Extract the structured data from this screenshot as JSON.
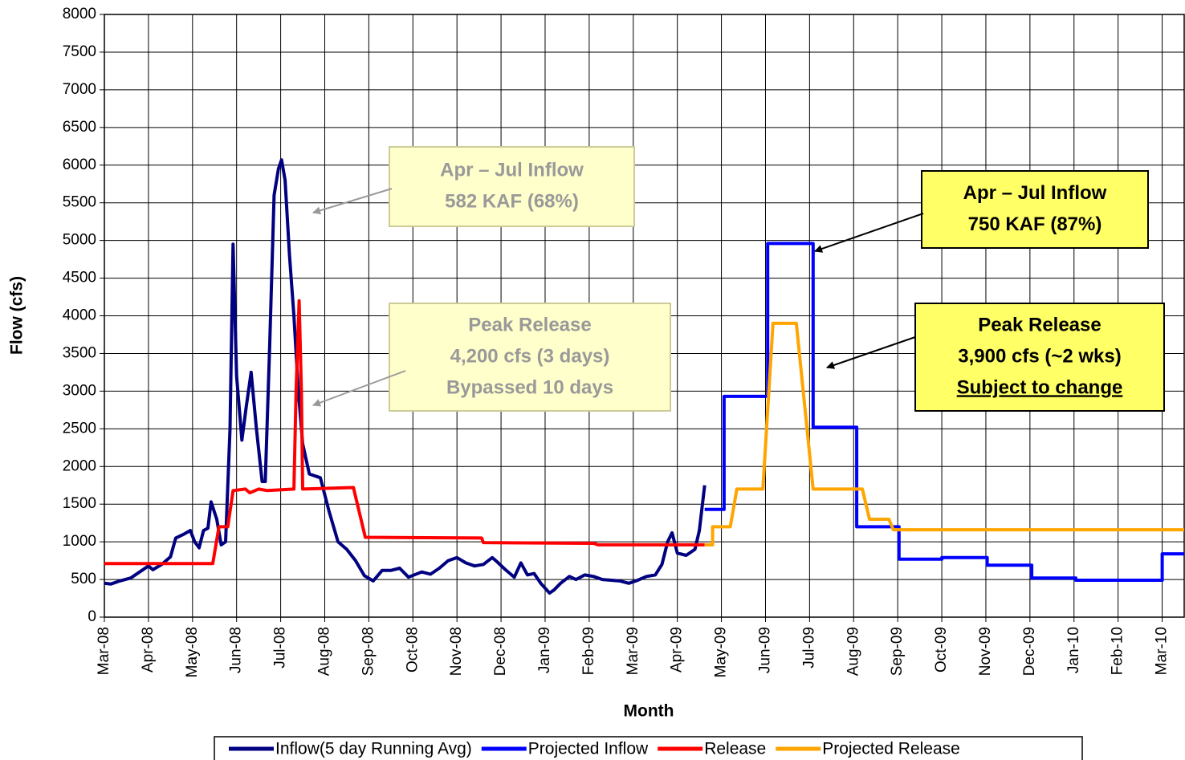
{
  "chart_data": {
    "type": "line",
    "x_label": "Month",
    "y_label": "Flow (cfs)",
    "xlim": [
      0,
      24.5
    ],
    "ylim": [
      0,
      8000
    ],
    "xticks": [
      {
        "value": 0,
        "label": "Mar-08"
      },
      {
        "value": 1,
        "label": "Apr-08"
      },
      {
        "value": 2,
        "label": "May-08"
      },
      {
        "value": 3,
        "label": "Jun-08"
      },
      {
        "value": 4,
        "label": "Jul-08"
      },
      {
        "value": 5,
        "label": "Aug-08"
      },
      {
        "value": 6,
        "label": "Sep-08"
      },
      {
        "value": 7,
        "label": "Oct-08"
      },
      {
        "value": 8,
        "label": "Nov-08"
      },
      {
        "value": 9,
        "label": "Dec-08"
      },
      {
        "value": 10,
        "label": "Jan-09"
      },
      {
        "value": 11,
        "label": "Feb-09"
      },
      {
        "value": 12,
        "label": "Mar-09"
      },
      {
        "value": 13,
        "label": "Apr-09"
      },
      {
        "value": 14,
        "label": "May-09"
      },
      {
        "value": 15,
        "label": "Jun-09"
      },
      {
        "value": 16,
        "label": "Jul-09"
      },
      {
        "value": 17,
        "label": "Aug-09"
      },
      {
        "value": 18,
        "label": "Sep-09"
      },
      {
        "value": 19,
        "label": "Oct-09"
      },
      {
        "value": 20,
        "label": "Nov-09"
      },
      {
        "value": 21,
        "label": "Dec-09"
      },
      {
        "value": 22,
        "label": "Jan-10"
      },
      {
        "value": 23,
        "label": "Feb-10"
      },
      {
        "value": 24,
        "label": "Mar-10"
      }
    ],
    "yticks": [
      0,
      500,
      1000,
      1500,
      2000,
      2500,
      3000,
      3500,
      4000,
      4500,
      5000,
      5500,
      6000,
      6500,
      7000,
      7500,
      8000
    ],
    "grid": true,
    "legend": "bottom",
    "series": [
      {
        "name": "Inflow(5 day Running Avg)",
        "color": "#000080",
        "x": [
          0,
          0.15,
          0.35,
          0.6,
          0.85,
          1.0,
          1.1,
          1.3,
          1.5,
          1.62,
          1.8,
          1.95,
          2.05,
          2.15,
          2.25,
          2.35,
          2.42,
          2.55,
          2.65,
          2.75,
          2.85,
          2.92,
          3.0,
          3.12,
          3.22,
          3.33,
          3.45,
          3.58,
          3.65,
          3.75,
          3.85,
          3.95,
          4.02,
          4.1,
          4.2,
          4.3,
          4.4,
          4.5,
          4.65,
          4.9,
          5.1,
          5.3,
          5.5,
          5.7,
          5.9,
          6.1,
          6.3,
          6.5,
          6.7,
          6.9,
          7.2,
          7.4,
          7.6,
          7.8,
          8.0,
          8.2,
          8.4,
          8.6,
          8.8,
          8.9,
          9.1,
          9.3,
          9.45,
          9.6,
          9.75,
          9.9,
          10.1,
          10.2,
          10.35,
          10.55,
          10.7,
          10.9,
          11.1,
          11.3,
          11.5,
          11.7,
          11.9,
          12.1,
          12.3,
          12.5,
          12.65,
          12.78,
          12.88,
          13.0,
          13.2,
          13.4,
          13.5,
          13.62
        ],
        "values": [
          450,
          440,
          480,
          520,
          620,
          680,
          630,
          700,
          800,
          1050,
          1100,
          1150,
          1000,
          920,
          1150,
          1180,
          1530,
          1300,
          960,
          1000,
          2500,
          4950,
          3200,
          2350,
          2800,
          3250,
          2500,
          1800,
          1800,
          3600,
          5600,
          5950,
          6070,
          5800,
          4800,
          4000,
          3000,
          2300,
          1900,
          1850,
          1400,
          1000,
          900,
          750,
          550,
          480,
          620,
          620,
          650,
          530,
          600,
          570,
          650,
          750,
          790,
          720,
          680,
          700,
          790,
          740,
          630,
          530,
          720,
          560,
          580,
          450,
          320,
          360,
          450,
          540,
          500,
          560,
          540,
          500,
          490,
          480,
          450,
          490,
          540,
          560,
          700,
          1000,
          1120,
          850,
          820,
          900,
          1150,
          1750
        ]
      },
      {
        "name": "Projected Inflow",
        "color": "#0000ff",
        "x": [
          13.62,
          14.06,
          14.06,
          15.05,
          15.05,
          16.08,
          16.08,
          17.07,
          17.07,
          18.03,
          18.03,
          19.0,
          19.0,
          20.03,
          20.03,
          21.04,
          21.04,
          22.04,
          22.04,
          24.0,
          24.0,
          24.5
        ],
        "values": [
          1430,
          1430,
          2930,
          2930,
          4960,
          4960,
          2520,
          2520,
          1200,
          1200,
          770,
          770,
          790,
          790,
          690,
          690,
          520,
          520,
          490,
          490,
          840,
          840
        ]
      },
      {
        "name": "Release",
        "color": "#ff0000",
        "x": [
          0,
          2.46,
          2.6,
          2.8,
          2.92,
          3.2,
          3.3,
          3.5,
          3.7,
          4.3,
          4.35,
          4.42,
          4.47,
          4.5,
          5.65,
          5.92,
          8.56,
          8.6,
          11.1,
          11.2,
          13.62
        ],
        "values": [
          710,
          710,
          1200,
          1200,
          1680,
          1700,
          1650,
          1700,
          1680,
          1700,
          3000,
          4200,
          3000,
          1700,
          1720,
          1060,
          1050,
          990,
          980,
          960,
          960
        ]
      },
      {
        "name": "Projected Release",
        "color": "#ffa500",
        "x": [
          13.62,
          13.8,
          13.8,
          14.2,
          14.35,
          14.94,
          15.17,
          15.7,
          16.08,
          17.2,
          17.36,
          17.8,
          17.9,
          24.5
        ],
        "values": [
          960,
          960,
          1200,
          1200,
          1700,
          1700,
          3900,
          3900,
          1700,
          1700,
          1300,
          1300,
          1160,
          1160
        ]
      }
    ],
    "annotations": [
      {
        "lines": [
          "Apr – Jul Inflow",
          "582 KAF (68%)"
        ],
        "fill": "#ffffcc",
        "text_color": "#999999",
        "border": "#cccc99",
        "arrow_color": "#999999"
      },
      {
        "lines": [
          "Peak Release",
          "4,200 cfs (3 days)",
          "Bypassed 10 days"
        ],
        "fill": "#ffffcc",
        "text_color": "#999999",
        "border": "#cccc99",
        "arrow_color": "#999999"
      },
      {
        "lines": [
          "Apr – Jul Inflow",
          "750 KAF (87%)"
        ],
        "fill": "#ffff66",
        "text_color": "#000000",
        "border": "#000000",
        "arrow_color": "#000000"
      },
      {
        "lines": [
          "Peak Release",
          "3,900 cfs (~2 wks)",
          "Subject to change"
        ],
        "fill": "#ffff66",
        "text_color": "#000000",
        "border": "#000000",
        "arrow_color": "#000000",
        "underline_index": 2
      }
    ]
  }
}
